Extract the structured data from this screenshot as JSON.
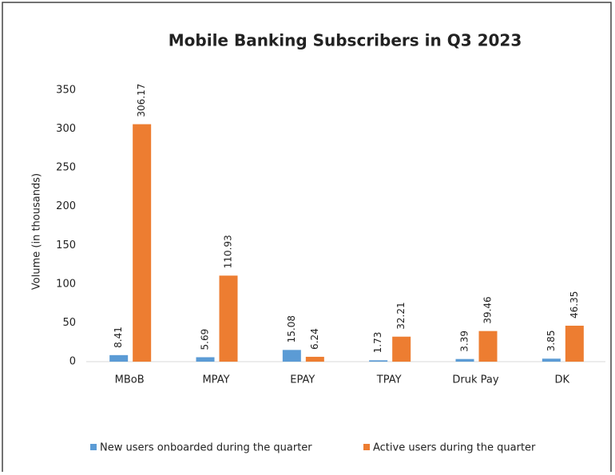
{
  "chart_data": {
    "type": "bar",
    "title": "Mobile Banking Subscribers in Q3 2023",
    "y_label": "Volume (in thousands)",
    "categories": [
      "MBoB",
      "MPAY",
      "EPAY",
      "TPAY",
      "Druk Pay",
      "DK"
    ],
    "series": [
      {
        "name": "New users onboarded during the quarter",
        "color": "#5b9bd5",
        "values": [
          8.41,
          5.69,
          15.08,
          1.73,
          3.39,
          3.85
        ]
      },
      {
        "name": "Active users during the quarter",
        "color": "#ed7d31",
        "values": [
          306.17,
          110.93,
          6.24,
          32.21,
          39.46,
          46.35
        ]
      }
    ],
    "ylim": [
      0,
      350
    ],
    "yticks": [
      0,
      50,
      100,
      150,
      200,
      250,
      300,
      350
    ],
    "grid": false,
    "legend": "bottom"
  }
}
